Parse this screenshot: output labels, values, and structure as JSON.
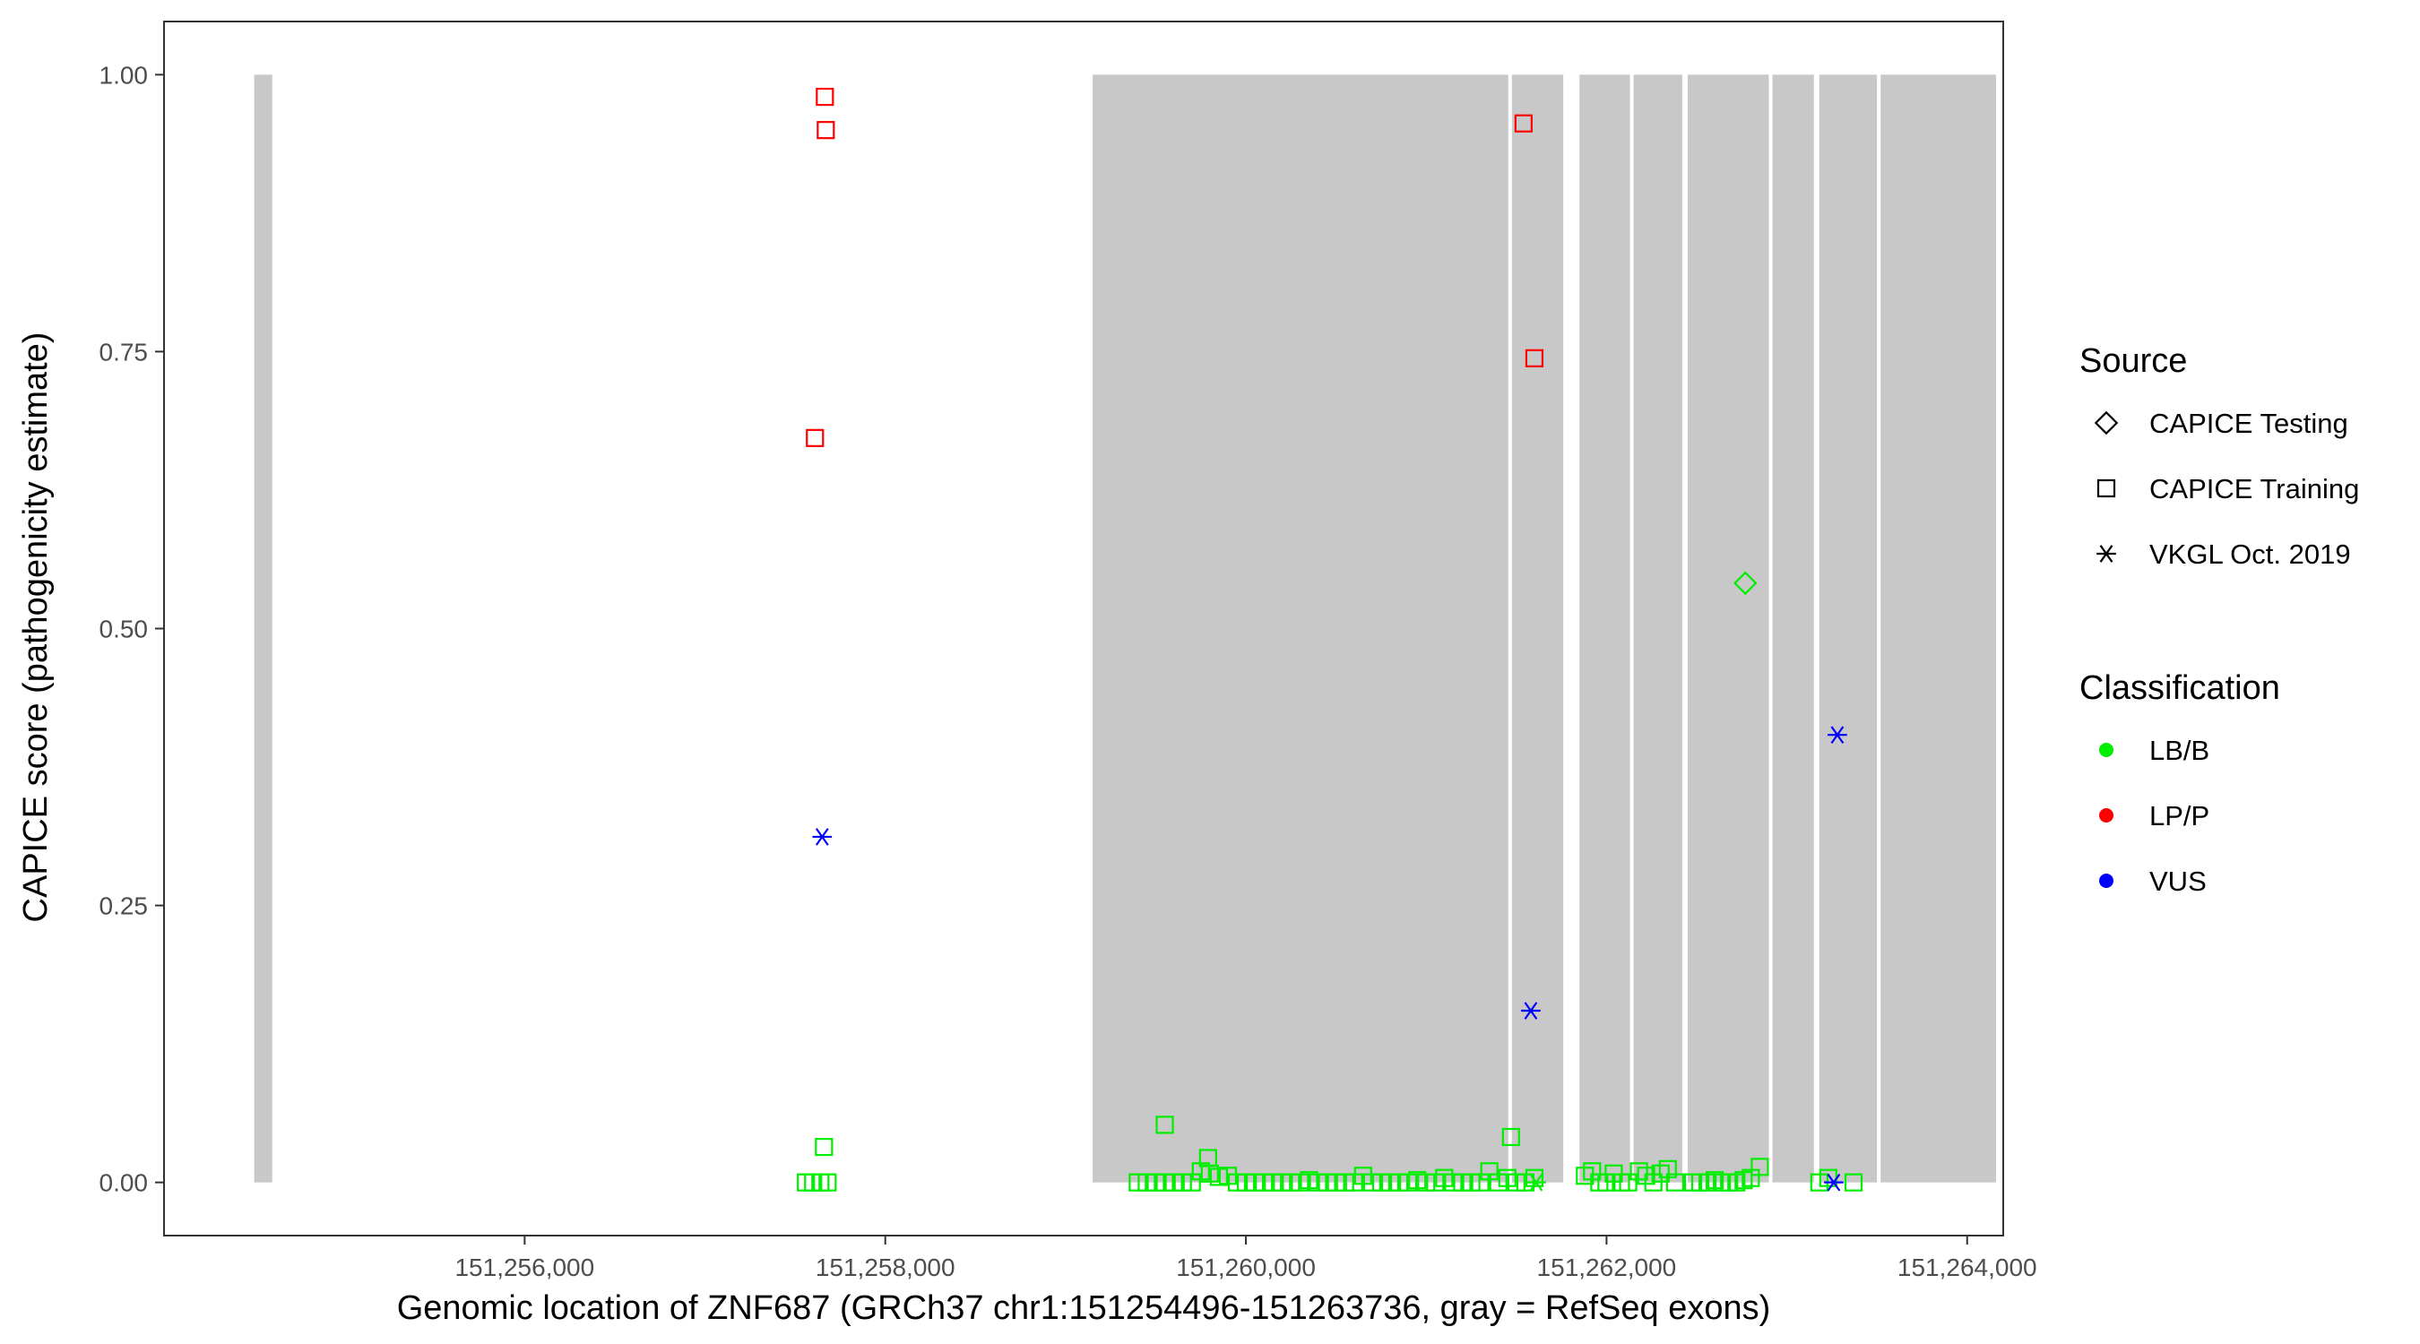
{
  "chart_data": {
    "type": "scatter",
    "xlabel": "Genomic location of ZNF687 (GRCh37 chr1:151254496-151263736, gray = RefSeq exons)",
    "ylabel": "CAPICE score (pathogenicity estimate)",
    "xlim": [
      151254000,
      151264200
    ],
    "ylim": [
      -0.048,
      1.048
    ],
    "x_ticks": [
      151256000,
      151258000,
      151260000,
      151262000,
      151264000
    ],
    "x_tick_labels": [
      "151,256,000",
      "151,258,000",
      "151,260,000",
      "151,262,000",
      "151,264,000"
    ],
    "y_ticks": [
      0,
      0.25,
      0.5,
      0.75,
      1.0
    ],
    "y_tick_labels": [
      "0.00",
      "0.25",
      "0.50",
      "0.75",
      "1.00"
    ],
    "exons": [
      [
        151254500,
        151254600
      ],
      [
        151259150,
        151261455
      ],
      [
        151261475,
        151261760
      ],
      [
        151261850,
        151262130
      ],
      [
        151262150,
        151262420
      ],
      [
        151262450,
        151262900
      ],
      [
        151262920,
        151263150
      ],
      [
        151263180,
        151263500
      ],
      [
        151263520,
        151264160
      ]
    ],
    "legend_source": {
      "title": "Source",
      "items": [
        {
          "label": "CAPICE Testing",
          "shape": "diamond"
        },
        {
          "label": "CAPICE Training",
          "shape": "square"
        },
        {
          "label": "VKGL Oct. 2019",
          "shape": "asterisk"
        }
      ]
    },
    "legend_classification": {
      "title": "Classification",
      "items": [
        {
          "label": "LB/B",
          "color": "#00ee00"
        },
        {
          "label": "LP/P",
          "color": "#ff0000"
        },
        {
          "label": "VUS",
          "color": "#0000ff"
        }
      ]
    },
    "grid": false,
    "legend_position": "right",
    "series": [
      {
        "source": "CAPICE Training",
        "classification": "LP/P",
        "shape": "square",
        "color": "#ff0000",
        "points": [
          [
            151257665,
            0.98
          ],
          [
            151257670,
            0.95
          ],
          [
            151257610,
            0.672
          ],
          [
            151261540,
            0.956
          ],
          [
            151261600,
            0.744
          ]
        ]
      },
      {
        "source": "VKGL Oct. 2019",
        "classification": "VUS",
        "shape": "asterisk",
        "color": "#0000ff",
        "points": [
          [
            151257650,
            0.312
          ],
          [
            151261580,
            0.155
          ],
          [
            151263280,
            0.404
          ],
          [
            151263260,
            0.0
          ]
        ]
      },
      {
        "source": "CAPICE Testing",
        "classification": "LB/B",
        "shape": "diamond",
        "color": "#00ee00",
        "points": [
          [
            151262770,
            0.541
          ]
        ]
      },
      {
        "source": "VKGL Oct. 2019",
        "classification": "LB/B",
        "shape": "asterisk",
        "color": "#00ee00",
        "points": [
          [
            151261610,
            0.0
          ]
        ]
      },
      {
        "source": "CAPICE Training",
        "classification": "LB/B",
        "shape": "square",
        "color": "#00ee00",
        "points": [
          [
            151257660,
            0.032
          ],
          [
            151257560,
            0.0
          ],
          [
            151257600,
            0.0
          ],
          [
            151257640,
            0.0
          ],
          [
            151257680,
            0.0
          ],
          [
            151259550,
            0.052
          ],
          [
            151259790,
            0.022
          ],
          [
            151261470,
            0.041
          ],
          [
            151259400,
            0.0
          ],
          [
            151259450,
            0.0
          ],
          [
            151259500,
            0.0
          ],
          [
            151259550,
            0.0
          ],
          [
            151259600,
            0.0
          ],
          [
            151259650,
            0.0
          ],
          [
            151259700,
            0.0
          ],
          [
            151259750,
            0.01
          ],
          [
            151259800,
            0.008
          ],
          [
            151259850,
            0.005
          ],
          [
            151259900,
            0.006
          ],
          [
            151259950,
            0.0
          ],
          [
            151260000,
            0.0
          ],
          [
            151260050,
            0.0
          ],
          [
            151260100,
            0.0
          ],
          [
            151260150,
            0.0
          ],
          [
            151260200,
            0.0
          ],
          [
            151260250,
            0.0
          ],
          [
            151260300,
            0.0
          ],
          [
            151260350,
            0.002
          ],
          [
            151260400,
            0.0
          ],
          [
            151260450,
            0.0
          ],
          [
            151260500,
            0.0
          ],
          [
            151260550,
            0.0
          ],
          [
            151260600,
            0.0
          ],
          [
            151260650,
            0.006
          ],
          [
            151260700,
            0.0
          ],
          [
            151260750,
            0.0
          ],
          [
            151260800,
            0.0
          ],
          [
            151260850,
            0.0
          ],
          [
            151260900,
            0.0
          ],
          [
            151260950,
            0.002
          ],
          [
            151261000,
            0.0
          ],
          [
            151261050,
            0.0
          ],
          [
            151261100,
            0.004
          ],
          [
            151261150,
            0.0
          ],
          [
            151261200,
            0.0
          ],
          [
            151261250,
            0.0
          ],
          [
            151261300,
            0.0
          ],
          [
            151261350,
            0.01
          ],
          [
            151261400,
            0.0
          ],
          [
            151261450,
            0.004
          ],
          [
            151261500,
            0.0
          ],
          [
            151261550,
            0.0
          ],
          [
            151261600,
            0.004
          ],
          [
            151261880,
            0.006
          ],
          [
            151261920,
            0.01
          ],
          [
            151261960,
            0.0
          ],
          [
            151262000,
            0.0
          ],
          [
            151262040,
            0.008
          ],
          [
            151262080,
            0.0
          ],
          [
            151262120,
            0.0
          ],
          [
            151262180,
            0.01
          ],
          [
            151262220,
            0.006
          ],
          [
            151262260,
            0.0
          ],
          [
            151262300,
            0.008
          ],
          [
            151262340,
            0.012
          ],
          [
            151262380,
            0.0
          ],
          [
            151262480,
            0.0
          ],
          [
            151262520,
            0.0
          ],
          [
            151262560,
            0.0
          ],
          [
            151262600,
            0.002
          ],
          [
            151262640,
            0.0
          ],
          [
            151262680,
            0.0
          ],
          [
            151262720,
            0.0
          ],
          [
            151262760,
            0.002
          ],
          [
            151262800,
            0.004
          ],
          [
            151262850,
            0.014
          ],
          [
            151263180,
            0.0
          ],
          [
            151263230,
            0.004
          ],
          [
            151263370,
            0.0
          ]
        ]
      }
    ]
  }
}
